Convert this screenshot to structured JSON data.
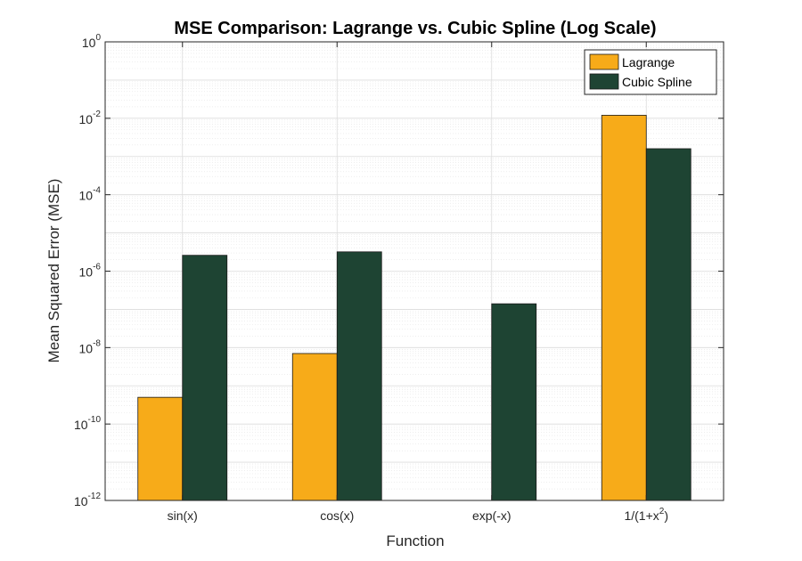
{
  "chart_data": {
    "type": "bar",
    "title": "MSE Comparison: Lagrange vs. Cubic Spline (Log Scale)",
    "xlabel": "Function",
    "ylabel": "Mean Squared Error (MSE)",
    "yscale": "log",
    "ylim": [
      1e-12,
      1
    ],
    "yticks": [
      {
        "base": "10",
        "exp": "-12",
        "value": 1e-12
      },
      {
        "base": "10",
        "exp": "-10",
        "value": 1e-10
      },
      {
        "base": "10",
        "exp": "-8",
        "value": 1e-08
      },
      {
        "base": "10",
        "exp": "-6",
        "value": 1e-06
      },
      {
        "base": "10",
        "exp": "-4",
        "value": 0.0001
      },
      {
        "base": "10",
        "exp": "-2",
        "value": 0.01
      },
      {
        "base": "10",
        "exp": "0",
        "value": 1
      }
    ],
    "categories": [
      {
        "text": "sin(x)",
        "sup": "",
        "tail": ""
      },
      {
        "text": "cos(x)",
        "sup": "",
        "tail": ""
      },
      {
        "text": "exp(-x)",
        "sup": "",
        "tail": ""
      },
      {
        "text": "1/(1+x",
        "sup": "2",
        "tail": ")"
      }
    ],
    "series": [
      {
        "name": "Lagrange",
        "color": "#F7AB19",
        "values": [
          5e-10,
          7e-09,
          null,
          0.012
        ]
      },
      {
        "name": "Cubic Spline",
        "color": "#1E4433",
        "values": [
          2.6e-06,
          3.2e-06,
          1.4e-07,
          0.0016
        ]
      }
    ],
    "grid": true,
    "minor_grid": true,
    "legend_position": "top-right"
  }
}
